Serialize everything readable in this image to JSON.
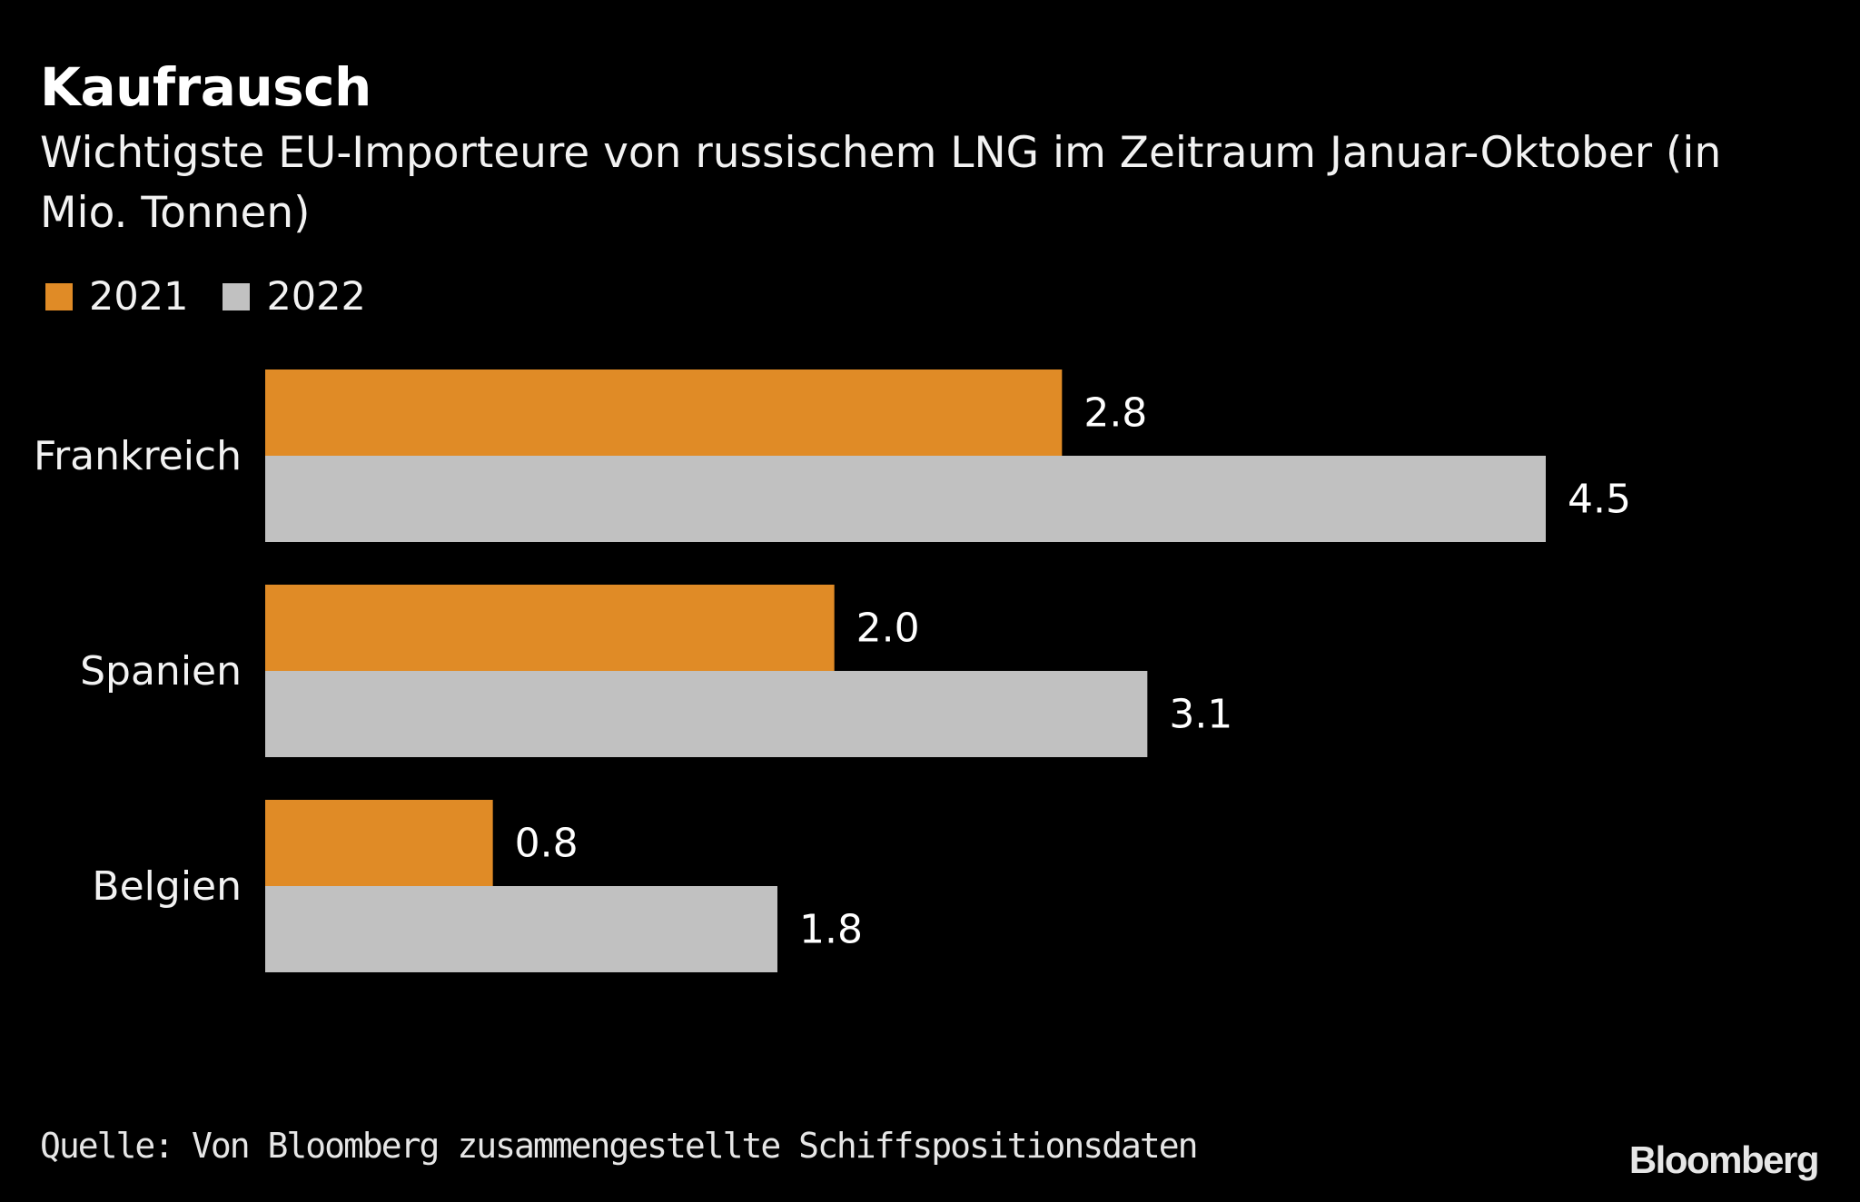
{
  "chart_data": {
    "type": "bar",
    "orientation": "horizontal",
    "title": "Kaufrausch",
    "subtitle": "Wichtigste EU-Importeure von russischem LNG im Zeitraum Januar-Oktober (in Mio. Tonnen)",
    "categories": [
      "Frankreich",
      "Spanien",
      "Belgien"
    ],
    "series": [
      {
        "name": "2021",
        "color": "#e08b26",
        "values": [
          2.8,
          2.0,
          0.8
        ]
      },
      {
        "name": "2022",
        "color": "#c1c1c1",
        "values": [
          4.5,
          3.1,
          1.8
        ]
      }
    ],
    "value_labels": [
      [
        "2.8",
        "2.0",
        "0.8"
      ],
      [
        "4.5",
        "3.1",
        "1.8"
      ]
    ],
    "xlim": [
      0,
      4.5
    ],
    "grid": false,
    "legend_position": "top-left",
    "source": "Quelle: Von Bloomberg zusammengestellte Schiffspositionsdaten",
    "brand": "Bloomberg"
  }
}
